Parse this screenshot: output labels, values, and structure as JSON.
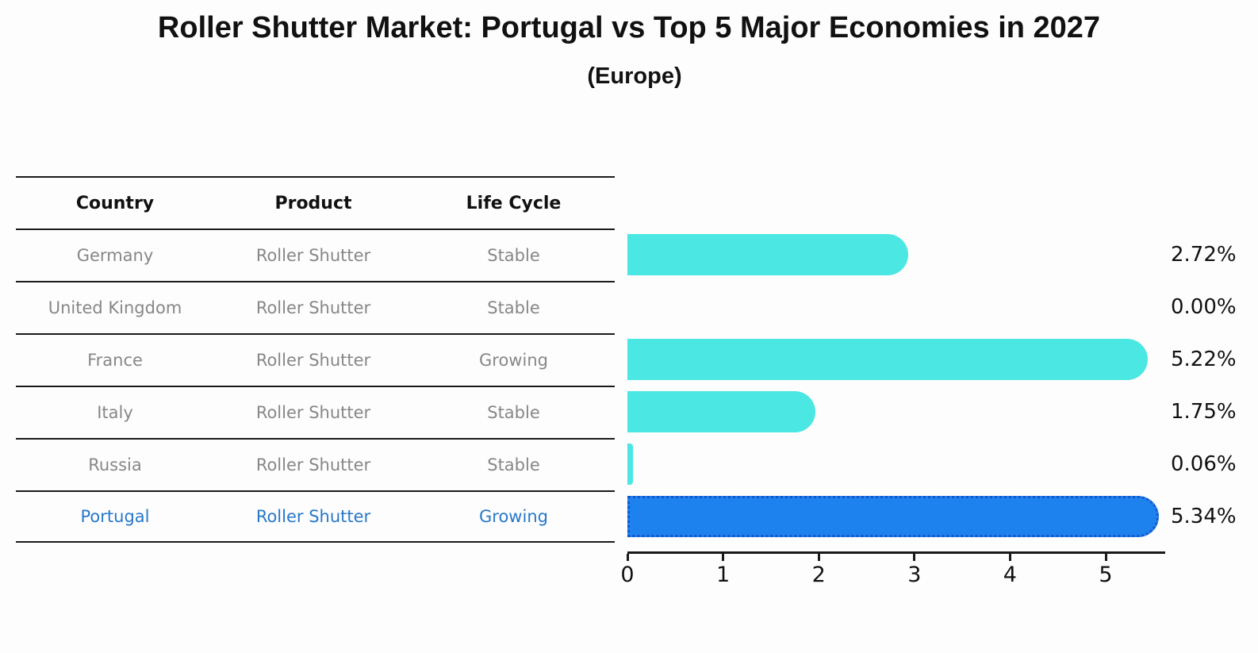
{
  "title": "Roller Shutter Market: Portugal vs Top 5 Major Economies in 2027",
  "subtitle": "(Europe)",
  "table": {
    "headers": [
      "Country",
      "Product",
      "Life Cycle"
    ],
    "rows": [
      {
        "country": "Germany",
        "product": "Roller Shutter",
        "life_cycle": "Stable",
        "highlight": false
      },
      {
        "country": "United Kingdom",
        "product": "Roller Shutter",
        "life_cycle": "Stable",
        "highlight": false
      },
      {
        "country": "France",
        "product": "Roller Shutter",
        "life_cycle": "Growing",
        "highlight": false
      },
      {
        "country": "Italy",
        "product": "Roller Shutter",
        "life_cycle": "Stable",
        "highlight": false
      },
      {
        "country": "Russia",
        "product": "Roller Shutter",
        "life_cycle": "Stable",
        "highlight": false
      },
      {
        "country": "Portugal",
        "product": "Roller Shutter",
        "life_cycle": "Growing",
        "highlight": true
      }
    ]
  },
  "chart_data": {
    "type": "bar",
    "orientation": "horizontal",
    "title": "Roller Shutter Market: Portugal vs Top 5 Major Economies in 2027",
    "subtitle": "(Europe)",
    "categories": [
      "Germany",
      "United Kingdom",
      "France",
      "Italy",
      "Russia",
      "Portugal"
    ],
    "values": [
      2.72,
      0.0,
      5.22,
      1.75,
      0.06,
      5.34
    ],
    "value_labels": [
      "2.72%",
      "0.00%",
      "5.22%",
      "1.75%",
      "0.06%",
      "5.34%"
    ],
    "xlabel": "",
    "ylabel": "",
    "xlim": [
      0,
      5.62
    ],
    "xticks": [
      "0",
      "1",
      "2",
      "3",
      "4",
      "5"
    ],
    "grid": false,
    "legend": false,
    "bar_color": "#4ae7e3",
    "highlight_index": 5,
    "highlight_bar_color": "#1e82ee",
    "highlight_border_color": "#1557c9",
    "highlight_text_color": "#2878c9",
    "row_text_color": "#878787",
    "axis_color": "#1a1a1a"
  }
}
